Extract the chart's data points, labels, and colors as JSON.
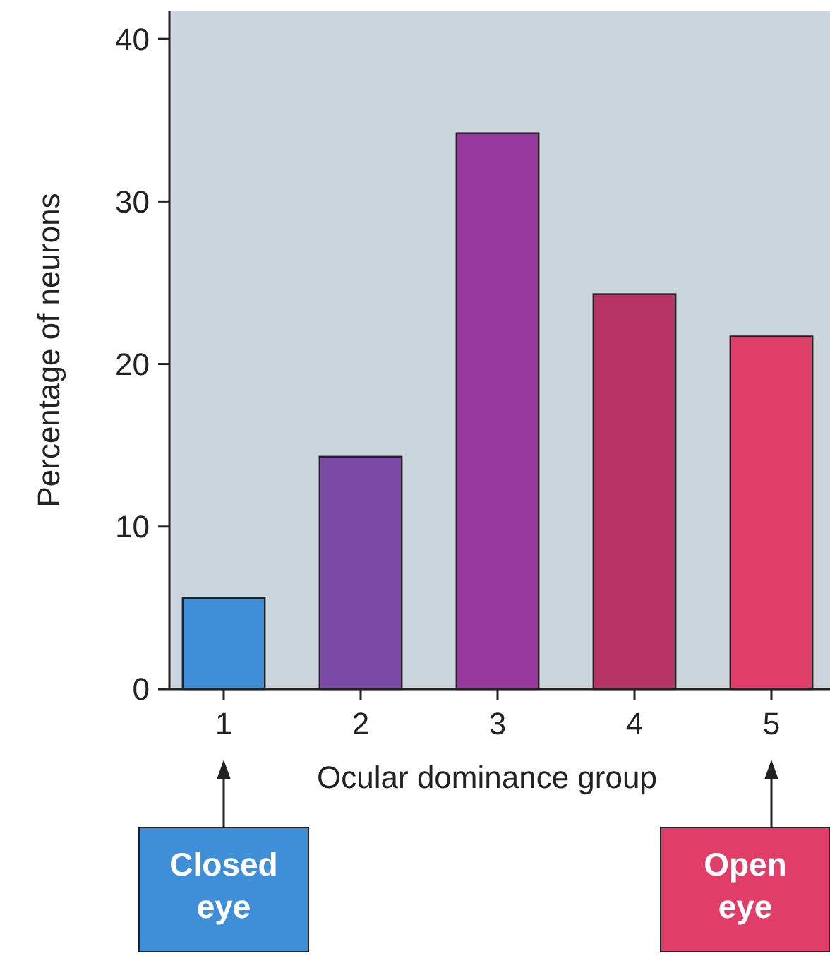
{
  "chart_data": {
    "type": "bar",
    "xlabel": "Ocular dominance group",
    "ylabel": "Percentage of neurons",
    "categories": [
      "1",
      "2",
      "3",
      "4",
      "5"
    ],
    "values": [
      5.6,
      14.3,
      34.2,
      24.3,
      21.7
    ],
    "colors": [
      "#3f8fd8",
      "#7a4aa6",
      "#96389c",
      "#b53462",
      "#e03d68"
    ],
    "ylim": [
      0,
      41.7
    ],
    "yticks": [
      0,
      10,
      20,
      30,
      40
    ],
    "grid": false,
    "annotations": [
      "Closed eye",
      "Open eye"
    ]
  }
}
